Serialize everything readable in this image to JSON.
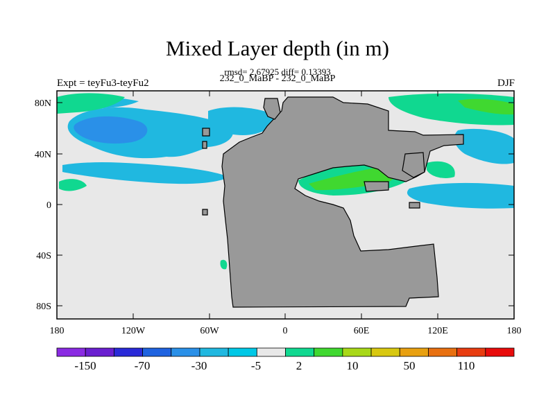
{
  "header": {
    "title": "Mixed Layer depth (in m)",
    "stats": "rmsd= 2.67925 diff= 0.13393",
    "runs": "232_0_MaBP - 232_0_MaBP",
    "expt": "Expt = teyFu3-teyFu2",
    "season": "DJF"
  },
  "map": {
    "lat_ticks": [
      "80N",
      "40N",
      "0",
      "40S",
      "80S"
    ],
    "lon_ticks": [
      "180",
      "120W",
      "60W",
      "0",
      "60E",
      "120E",
      "180"
    ],
    "land_color": "#999999",
    "neutral_color": "#e8e8e8"
  },
  "colorbar": {
    "colors": [
      "#8a2be2",
      "#6a1fd0",
      "#2a2ad8",
      "#1f63e0",
      "#2a90e8",
      "#20b8e0",
      "#00c8e6",
      "#e8e8e8",
      "#10d890",
      "#40d830",
      "#a8d818",
      "#d8c810",
      "#e8a010",
      "#e87010",
      "#e83c10",
      "#e80c0c"
    ],
    "labels": [
      "-150",
      "-70",
      "-30",
      "-5",
      "2",
      "10",
      "50",
      "110"
    ]
  }
}
